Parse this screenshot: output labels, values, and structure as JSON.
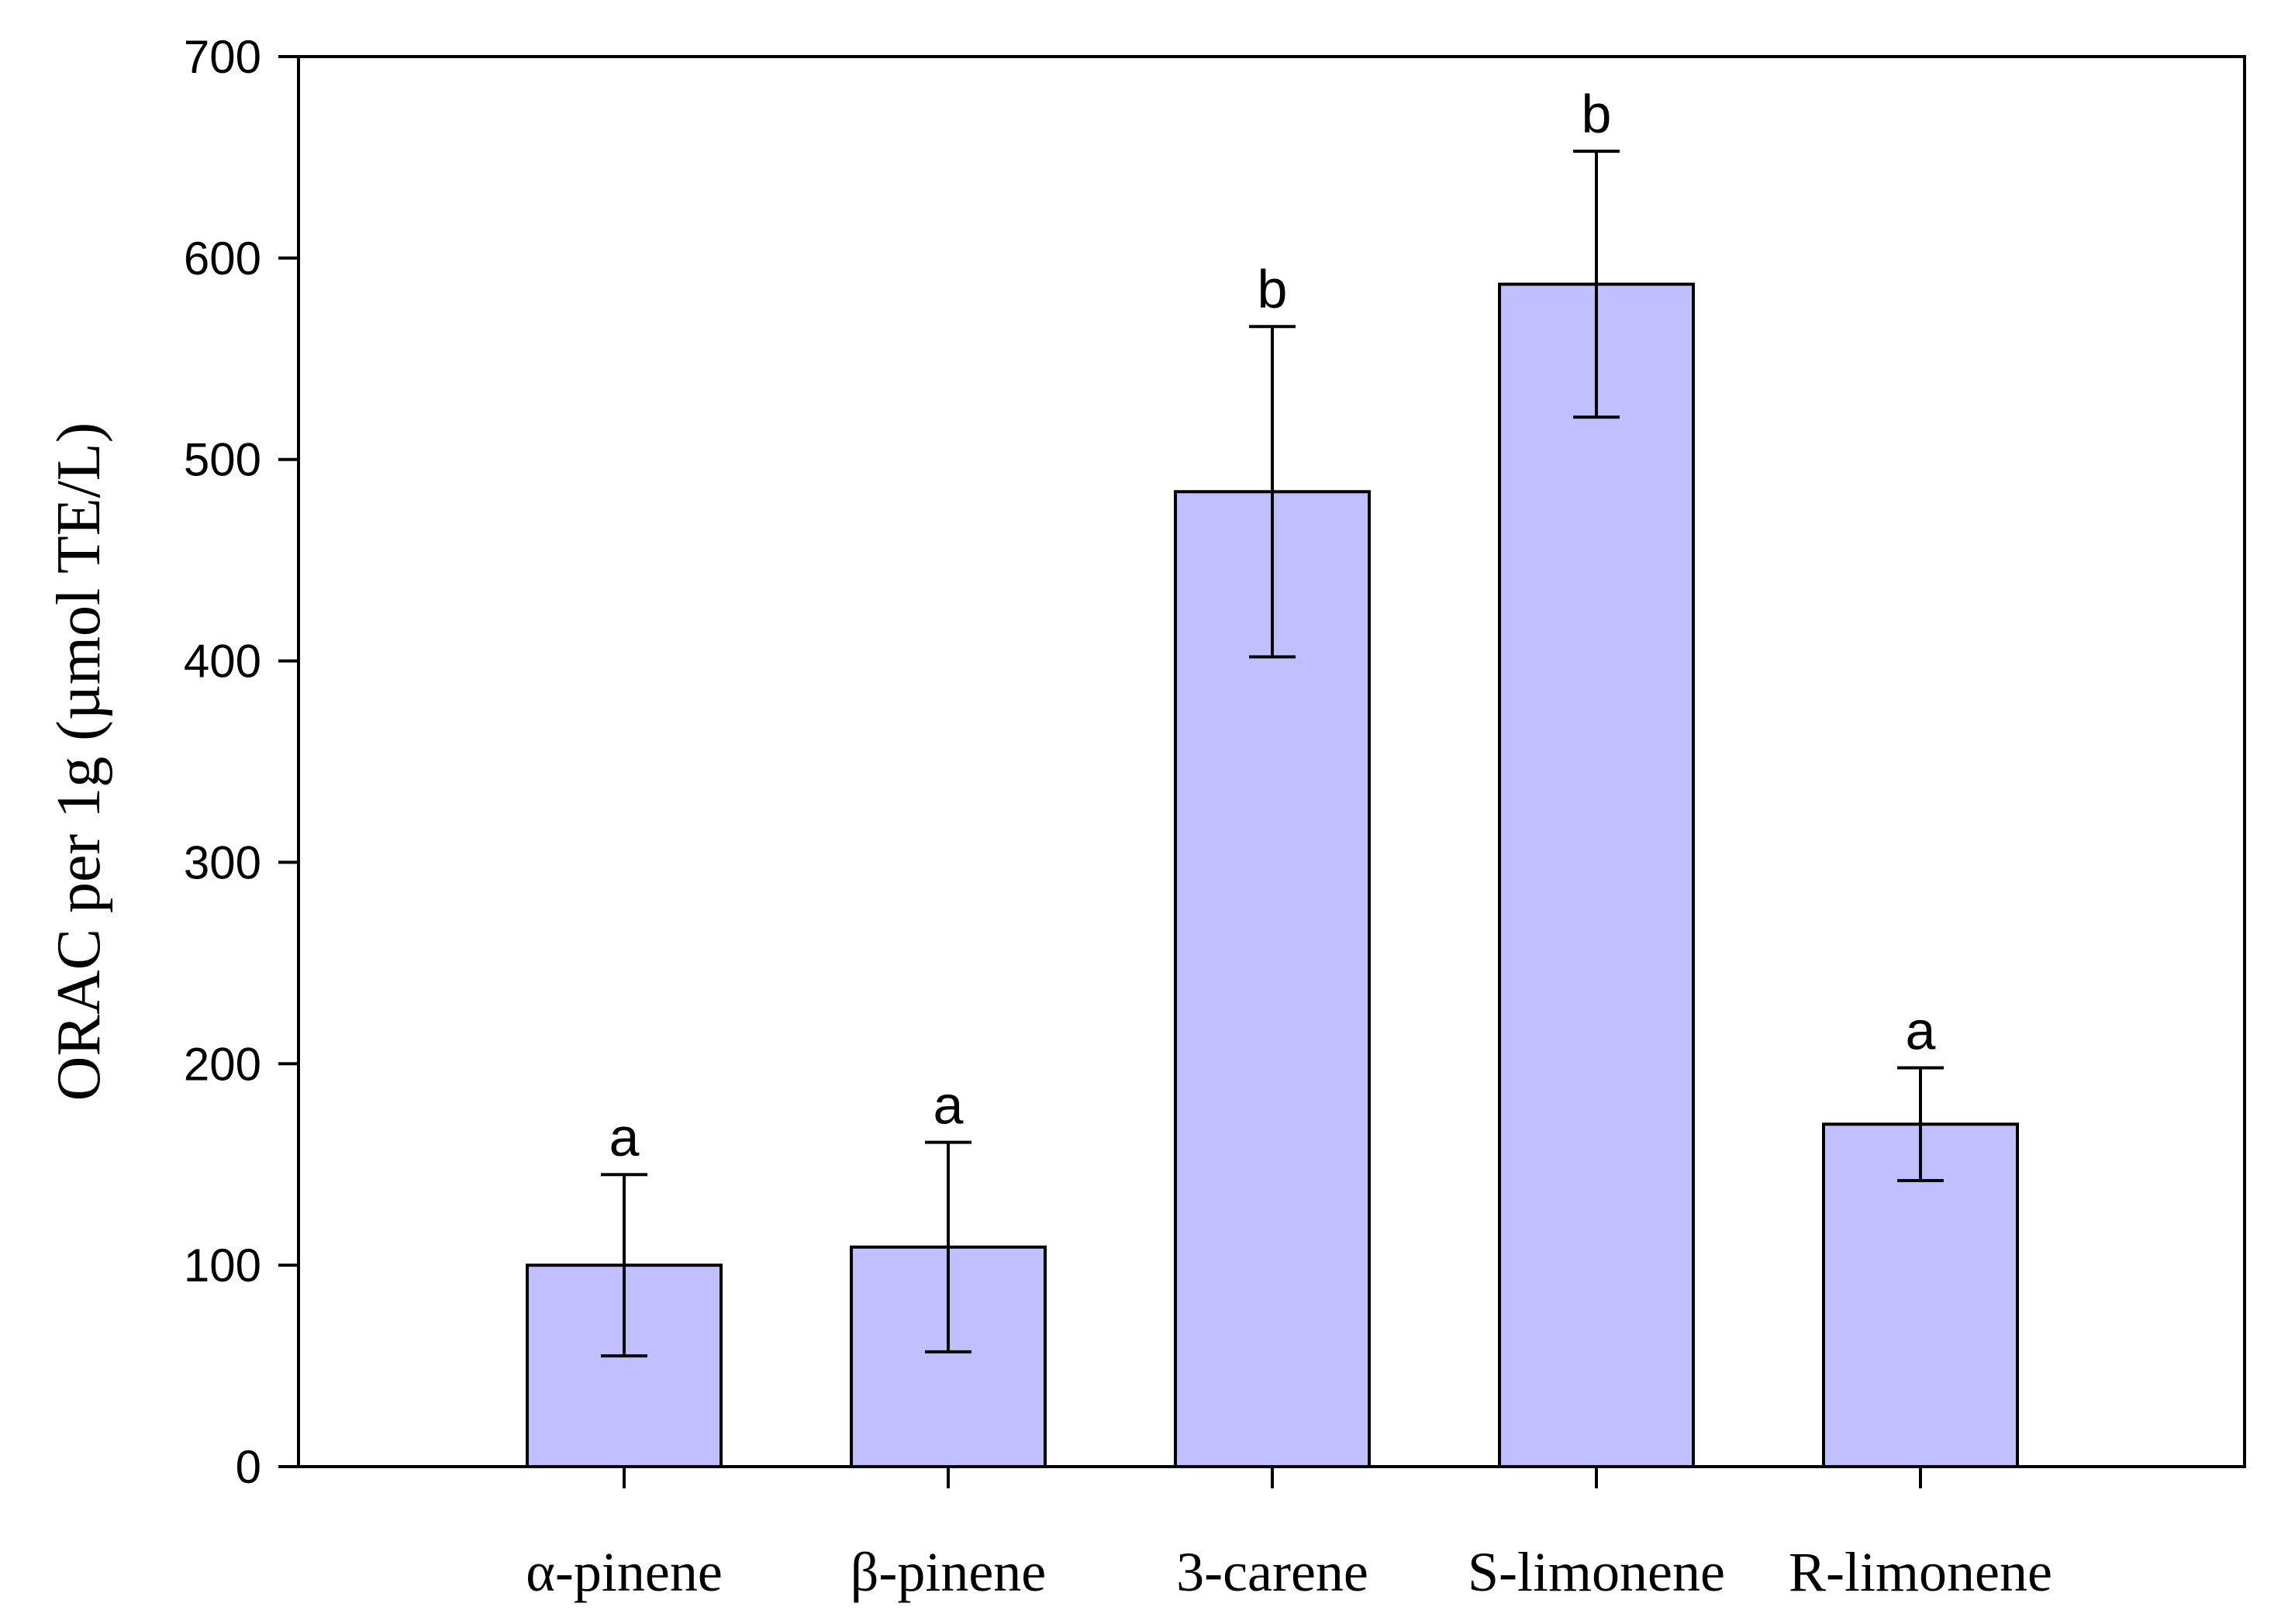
{
  "chart_data": {
    "type": "bar",
    "title": "",
    "xlabel": "",
    "ylabel": "ORAC per 1g (µmol TE/L)",
    "ylim": [
      0,
      700
    ],
    "yticks": [
      0,
      100,
      200,
      300,
      400,
      500,
      600,
      700
    ],
    "categories": [
      "α-pinene",
      "β-pinene",
      "3-carene",
      "S-limonene",
      "R-limonene"
    ],
    "series": [
      {
        "values": [
          100,
          109,
          484,
          587,
          170
        ],
        "error": [
          45,
          52,
          82,
          66,
          28
        ],
        "significance": [
          "a",
          "a",
          "b",
          "b",
          "a"
        ]
      }
    ],
    "bar_color": "#c0c0ff",
    "bar_edge_color": "#000000",
    "grid": false,
    "legend": "none"
  }
}
